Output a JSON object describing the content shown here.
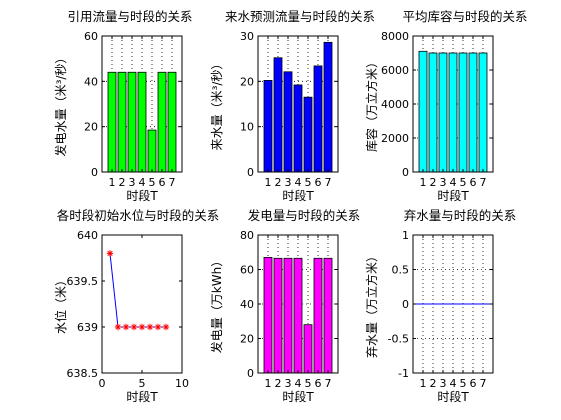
{
  "chart_data": [
    {
      "type": "bar",
      "title": "引用流量与时段的关系",
      "xlabel": "时段T",
      "ylabel": "发电水量（米³/秒）",
      "categories": [
        "1",
        "2",
        "3",
        "4",
        "5",
        "6",
        "7"
      ],
      "values": [
        44,
        44,
        44,
        44,
        18.5,
        44,
        44
      ],
      "ylim": [
        0,
        60
      ],
      "yticks": [
        "0",
        "20",
        "40",
        "60"
      ],
      "color": "#00ff00",
      "grid": true
    },
    {
      "type": "bar",
      "title": "来水预测流量与时段的关系",
      "xlabel": "时段T",
      "ylabel": "来水量（米³/秒）",
      "categories": [
        "1",
        "2",
        "3",
        "4",
        "5",
        "6",
        "7"
      ],
      "values": [
        20.2,
        25.2,
        22.1,
        19.2,
        16.5,
        23.4,
        28.6
      ],
      "ylim": [
        0,
        30
      ],
      "yticks": [
        "0",
        "10",
        "20",
        "30"
      ],
      "color": "#0000ff",
      "grid": true
    },
    {
      "type": "bar",
      "title": "平均库容与时段的关系",
      "xlabel": "时段T",
      "ylabel": "库容（万立方米）",
      "categories": [
        "1",
        "2",
        "3",
        "4",
        "5",
        "6",
        "7"
      ],
      "values": [
        7100,
        7000,
        7000,
        7000,
        7000,
        7000,
        7000
      ],
      "ylim": [
        0,
        8000
      ],
      "yticks": [
        "0",
        "2000",
        "4000",
        "6000",
        "8000"
      ],
      "color": "#00ffff",
      "grid": true
    },
    {
      "type": "line",
      "title": "各时段初始水位与时段的关系",
      "xlabel": "时段T",
      "ylabel": "水位（米）",
      "x": [
        1,
        2,
        3,
        4,
        5,
        6,
        7,
        8
      ],
      "y": [
        639.8,
        639,
        639,
        639,
        639,
        639,
        639,
        639
      ],
      "xlim": [
        0,
        10
      ],
      "ylim": [
        638.5,
        640
      ],
      "xticks": [
        "0",
        "5",
        "10"
      ],
      "yticks": [
        "638.5",
        "639",
        "639.5",
        "640"
      ],
      "line_color": "#0000ff",
      "marker_color": "#ff0000",
      "marker": "*",
      "grid": false
    },
    {
      "type": "bar",
      "title": "发电量与时段的关系",
      "xlabel": "时段T",
      "ylabel": "发电量（万kWh）",
      "categories": [
        "1",
        "2",
        "3",
        "4",
        "5",
        "6",
        "7"
      ],
      "values": [
        67,
        66.5,
        66.5,
        66.5,
        28,
        66.5,
        66.5
      ],
      "ylim": [
        0,
        80
      ],
      "yticks": [
        "0",
        "20",
        "40",
        "60",
        "80"
      ],
      "color": "#ff00ff",
      "grid": true
    },
    {
      "type": "line",
      "title": "弃水量与时段的关系",
      "xlabel": "时段T",
      "ylabel": "弃水量（万立方米）",
      "categories": [
        "1",
        "2",
        "3",
        "4",
        "5",
        "6",
        "7"
      ],
      "x": [
        0,
        1,
        2,
        3,
        4,
        5,
        6,
        7,
        8
      ],
      "y": [
        0,
        0,
        0,
        0,
        0,
        0,
        0,
        0,
        0
      ],
      "ylim": [
        -1,
        1
      ],
      "yticks": [
        "-1",
        "-0.5",
        "0",
        "0.5",
        "1"
      ],
      "line_color": "#0000ff",
      "grid": true
    }
  ]
}
